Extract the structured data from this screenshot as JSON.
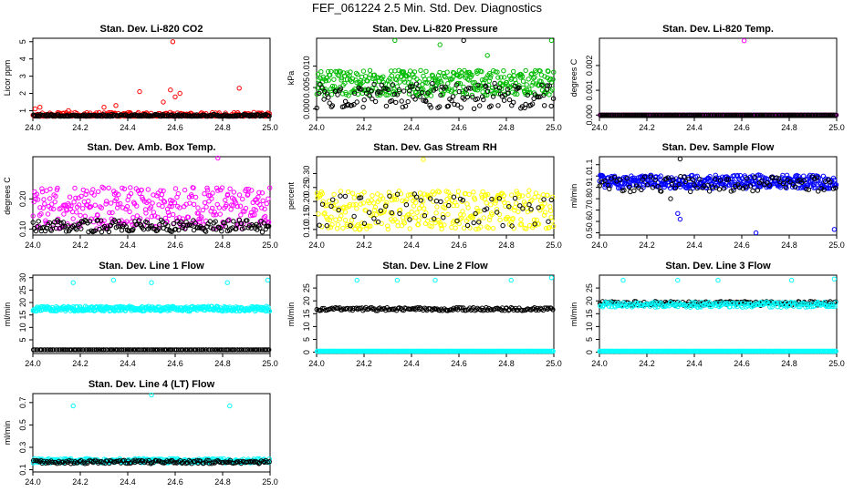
{
  "figure": {
    "title": "FEF_061224  2.5 Min. Std. Dev. Diagnostics"
  },
  "chart_data": [
    {
      "type": "scatter",
      "title": "Stan. Dev. Li-820 CO2",
      "ylabel": "Licor ppm",
      "xlim": [
        24.0,
        25.0
      ],
      "ylim": [
        0.6,
        5.2
      ],
      "xticks": [
        24.0,
        24.2,
        24.4,
        24.6,
        24.8,
        25.0
      ],
      "xtick_labels": [
        "24.0",
        "24.2",
        "24.4",
        "24.6",
        "24.8",
        "25.0"
      ],
      "yticks": [
        1,
        2,
        3,
        4,
        5
      ],
      "ytick_labels": [
        "1",
        "2",
        "3",
        "4",
        "5"
      ],
      "series": [
        {
          "name": "color series",
          "color": "#ff0000",
          "n": 260,
          "base": 0.75,
          "spread": 0.15,
          "outliers": [
            [
              24.01,
              1.1
            ],
            [
              24.03,
              1.2
            ],
            [
              24.15,
              1.0
            ],
            [
              24.3,
              1.2
            ],
            [
              24.35,
              1.3
            ],
            [
              24.45,
              2.1
            ],
            [
              24.55,
              1.5
            ],
            [
              24.58,
              2.2
            ],
            [
              24.6,
              1.8
            ],
            [
              24.62,
              2.0
            ],
            [
              24.59,
              5.0
            ],
            [
              24.87,
              2.3
            ]
          ]
        },
        {
          "name": "black series",
          "color": "#000000",
          "n": 220,
          "base": 0.7,
          "spread": 0.08,
          "outliers": []
        }
      ]
    },
    {
      "type": "scatter",
      "title": "Stan. Dev. Li-820 Pressure",
      "ylabel": "kPa",
      "xlim": [
        24.0,
        25.0
      ],
      "ylim": [
        -0.002,
        0.0165
      ],
      "xticks": [
        24.0,
        24.2,
        24.4,
        24.6,
        24.8,
        25.0
      ],
      "xtick_labels": [
        "24.0",
        "24.2",
        "24.4",
        "24.6",
        "24.8",
        "25.0"
      ],
      "yticks": [
        0.0,
        0.005,
        0.01
      ],
      "ytick_labels": [
        "0.000",
        "0.005",
        "0.010"
      ],
      "series": [
        {
          "name": "color series",
          "color": "#00bb00",
          "n": 380,
          "base": 0.006,
          "spread": 0.003,
          "outliers": [
            [
              24.33,
              0.016
            ],
            [
              24.52,
              0.015
            ],
            [
              24.72,
              0.0125
            ],
            [
              24.99,
              0.016
            ]
          ]
        },
        {
          "name": "black series",
          "color": "#000000",
          "n": 150,
          "base": 0.003,
          "spread": 0.003,
          "outliers": [
            [
              24.62,
              0.016
            ]
          ]
        }
      ]
    },
    {
      "type": "scatter",
      "title": "Stan. Dev. Li-820 Temp.",
      "ylabel": "degrees C",
      "xlim": [
        24.0,
        25.0
      ],
      "ylim": [
        -0.0001,
        0.0031
      ],
      "xticks": [
        24.0,
        24.2,
        24.4,
        24.6,
        24.8,
        25.0
      ],
      "xtick_labels": [
        "24.0",
        "24.2",
        "24.4",
        "24.6",
        "24.8",
        "25.0"
      ],
      "yticks": [
        0.0,
        0.001,
        0.002
      ],
      "ytick_labels": [
        "0.000",
        "0.001",
        "0.002"
      ],
      "series": [
        {
          "name": "color series",
          "color": "#ff00ff",
          "n": 260,
          "base": 0.0,
          "spread": 0.0,
          "outliers": [
            [
              24.61,
              0.003
            ]
          ]
        },
        {
          "name": "black series",
          "color": "#000000",
          "n": 200,
          "base": 0.0,
          "spread": 0.0,
          "outliers": []
        }
      ]
    },
    {
      "type": "scatter",
      "title": "Stan. Dev. Amb. Box Temp.",
      "ylabel": "degrees C",
      "xlim": [
        24.0,
        25.0
      ],
      "ylim": [
        0.08,
        0.34
      ],
      "xticks": [
        24.0,
        24.2,
        24.4,
        24.6,
        24.8,
        25.0
      ],
      "xtick_labels": [
        "24.0",
        "24.2",
        "24.4",
        "24.6",
        "24.8",
        "25.0"
      ],
      "yticks": [
        0.1,
        0.2
      ],
      "ytick_labels": [
        "0.10",
        "0.20"
      ],
      "series": [
        {
          "name": "color series",
          "color": "#ff00ff",
          "n": 330,
          "base": 0.17,
          "spread": 0.07,
          "outliers": [
            [
              24.78,
              0.34
            ]
          ]
        },
        {
          "name": "black series",
          "color": "#000000",
          "n": 180,
          "base": 0.11,
          "spread": 0.02,
          "outliers": []
        }
      ]
    },
    {
      "type": "scatter",
      "title": "Stan. Dev. Gas Stream RH",
      "ylabel": "percent",
      "xlim": [
        24.0,
        25.0
      ],
      "ylim": [
        0.08,
        0.36
      ],
      "xticks": [
        24.0,
        24.2,
        24.4,
        24.6,
        24.8,
        25.0
      ],
      "xtick_labels": [
        "24.0",
        "24.2",
        "24.4",
        "24.6",
        "24.8",
        "25.0"
      ],
      "yticks": [
        0.1,
        0.15,
        0.2,
        0.25,
        0.3
      ],
      "ytick_labels": [
        "0.10",
        "0.15",
        "0.20",
        "0.25",
        "0.30"
      ],
      "series": [
        {
          "name": "color series",
          "color": "#ffff00",
          "n": 330,
          "base": 0.17,
          "spread": 0.07,
          "outliers": [
            [
              24.45,
              0.35
            ]
          ]
        },
        {
          "name": "black series",
          "color": "#000000",
          "n": 60,
          "base": 0.17,
          "spread": 0.06,
          "outliers": []
        }
      ]
    },
    {
      "type": "scatter",
      "title": "Stan. Dev. Sample Flow",
      "ylabel": "ml/min",
      "xlim": [
        24.0,
        25.0
      ],
      "ylim": [
        0.48,
        1.17
      ],
      "xticks": [
        24.0,
        24.2,
        24.4,
        24.6,
        24.8,
        25.0
      ],
      "xtick_labels": [
        "24.0",
        "24.2",
        "24.4",
        "24.6",
        "24.8",
        "25.0"
      ],
      "yticks": [
        0.5,
        0.6,
        0.7,
        0.8,
        0.9,
        1.0,
        1.1
      ],
      "ytick_labels": [
        "0.5",
        "0.6",
        "0.7",
        "0.8",
        "0.9",
        "1.0",
        "1.1"
      ],
      "series": [
        {
          "name": "color series",
          "color": "#0000ff",
          "n": 420,
          "base": 0.95,
          "spread": 0.06,
          "outliers": [
            [
              24.33,
              0.67
            ],
            [
              24.34,
              0.62
            ],
            [
              24.66,
              0.5
            ],
            [
              24.99,
              0.53
            ]
          ]
        },
        {
          "name": "black series",
          "color": "#000000",
          "n": 100,
          "base": 0.93,
          "spread": 0.07,
          "outliers": [
            [
              24.34,
              1.15
            ],
            [
              24.3,
              0.8
            ]
          ]
        }
      ]
    },
    {
      "type": "scatter",
      "title": "Stan. Dev. Line 1 Flow",
      "ylabel": "ml/min",
      "xlim": [
        24.0,
        25.0
      ],
      "ylim": [
        -0.5,
        31
      ],
      "xticks": [
        24.0,
        24.2,
        24.4,
        24.6,
        24.8,
        25.0
      ],
      "xtick_labels": [
        "24.0",
        "24.2",
        "24.4",
        "24.6",
        "24.8",
        "25.0"
      ],
      "yticks": [
        5,
        10,
        15,
        20,
        25,
        30
      ],
      "ytick_labels": [
        "5",
        "10",
        "15",
        "20",
        "25",
        "30"
      ],
      "series": [
        {
          "name": "color series",
          "color": "#00ffff",
          "n": 360,
          "base": 17.5,
          "spread": 1.0,
          "outliers": [
            [
              24.17,
              28
            ],
            [
              24.34,
              29
            ],
            [
              24.5,
              28
            ],
            [
              24.82,
              28
            ],
            [
              24.99,
              29
            ]
          ]
        },
        {
          "name": "black series",
          "color": "#000000",
          "n": 160,
          "base": 1.0,
          "spread": 0.0,
          "outliers": []
        }
      ]
    },
    {
      "type": "scatter",
      "title": "Stan. Dev. Line 2 Flow",
      "ylabel": "ml/min",
      "xlim": [
        24.0,
        25.0
      ],
      "ylim": [
        -0.5,
        30
      ],
      "xticks": [
        24.0,
        24.2,
        24.4,
        24.6,
        24.8,
        25.0
      ],
      "xtick_labels": [
        "24.0",
        "24.2",
        "24.4",
        "24.6",
        "24.8",
        "25.0"
      ],
      "yticks": [
        0,
        5,
        10,
        15,
        20,
        25
      ],
      "ytick_labels": [
        "0",
        "5",
        "10",
        "15",
        "20",
        "25"
      ],
      "series": [
        {
          "name": "color series",
          "color": "#00ffff",
          "n": 300,
          "base": 0.4,
          "spread": 0.0,
          "outliers": [
            [
              24.17,
              28
            ],
            [
              24.34,
              28
            ],
            [
              24.5,
              28
            ],
            [
              24.82,
              28
            ],
            [
              24.99,
              29
            ]
          ]
        },
        {
          "name": "black series",
          "color": "#000000",
          "n": 170,
          "base": 16.8,
          "spread": 0.6,
          "outliers": []
        }
      ]
    },
    {
      "type": "scatter",
      "title": "Stan. Dev. Line 3 Flow",
      "ylabel": "ml/min",
      "xlim": [
        24.0,
        25.0
      ],
      "ylim": [
        -0.5,
        30
      ],
      "xticks": [
        24.0,
        24.2,
        24.4,
        24.6,
        24.8,
        25.0
      ],
      "xtick_labels": [
        "24.0",
        "24.2",
        "24.4",
        "24.6",
        "24.8",
        "25.0"
      ],
      "yticks": [
        0,
        5,
        10,
        15,
        20,
        25
      ],
      "ytick_labels": [
        "0",
        "5",
        "10",
        "15",
        "20",
        "25"
      ],
      "series": [
        {
          "name": "color series",
          "color": "#00ffff",
          "n": 300,
          "base": 0.4,
          "spread": 0.0,
          "outliers": [
            [
              24.1,
              28
            ],
            [
              24.33,
              28
            ],
            [
              24.5,
              28
            ],
            [
              24.81,
              28
            ],
            [
              24.99,
              28.5
            ]
          ]
        },
        {
          "name": "black series",
          "color": "#000000",
          "n": 170,
          "base": 19.0,
          "spread": 0.8,
          "outliers": []
        },
        {
          "name": "color series band",
          "color": "#00ffff",
          "n": 200,
          "base": 18.5,
          "spread": 1.0,
          "outliers": []
        }
      ]
    },
    {
      "type": "scatter",
      "title": "Stan. Dev. Line 4 (LT) Flow",
      "ylabel": "ml/min",
      "xlim": [
        24.0,
        25.0
      ],
      "ylim": [
        0.08,
        0.78
      ],
      "xticks": [
        24.0,
        24.2,
        24.4,
        24.6,
        24.8,
        25.0
      ],
      "xtick_labels": [
        "24.0",
        "24.2",
        "24.4",
        "24.6",
        "24.8",
        "25.0"
      ],
      "yticks": [
        0.1,
        0.3,
        0.5,
        0.7
      ],
      "ytick_labels": [
        "0.1",
        "0.3",
        "0.5",
        "0.7"
      ],
      "series": [
        {
          "name": "color series",
          "color": "#00ffff",
          "n": 320,
          "base": 0.18,
          "spread": 0.02,
          "outliers": [
            [
              24.17,
              0.67
            ],
            [
              24.5,
              0.77
            ],
            [
              24.83,
              0.67
            ]
          ]
        },
        {
          "name": "black series",
          "color": "#000000",
          "n": 160,
          "base": 0.17,
          "spread": 0.015,
          "outliers": []
        }
      ]
    }
  ]
}
